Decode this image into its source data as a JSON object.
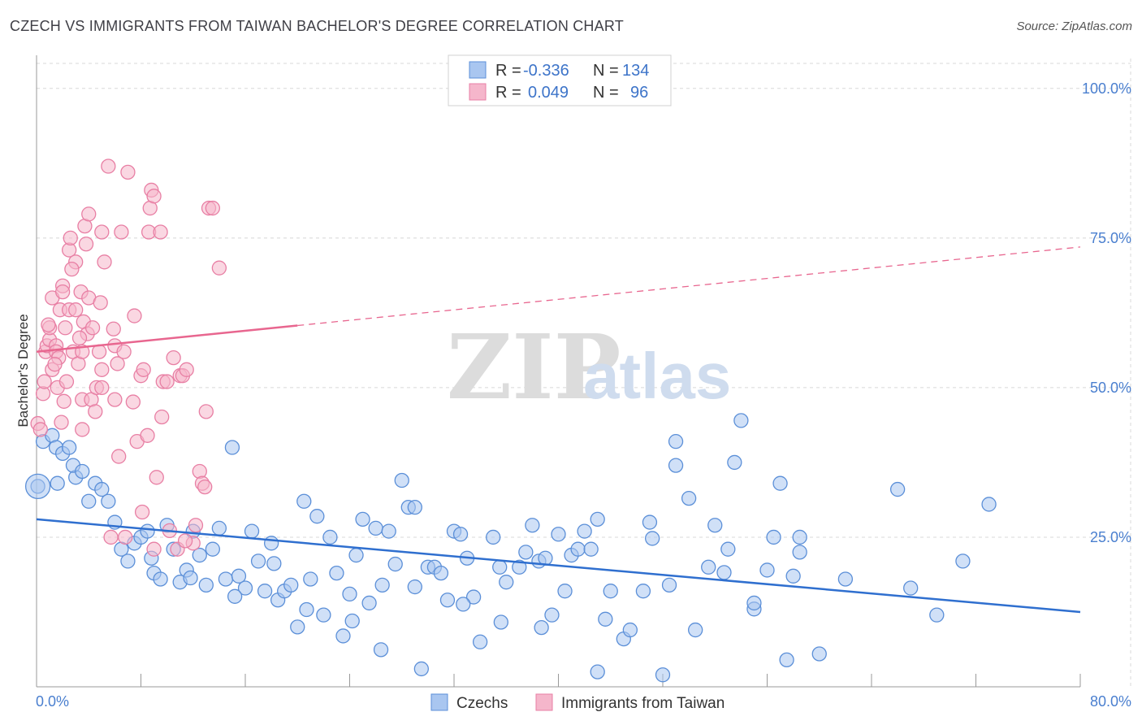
{
  "title": "CZECH VS IMMIGRANTS FROM TAIWAN BACHELOR'S DEGREE CORRELATION CHART",
  "source": "Source: ZipAtlas.com",
  "watermark": {
    "zip": "ZIP",
    "atlas": "atlas"
  },
  "colors": {
    "czech_fill": "#a9c6f0",
    "czech_stroke": "#5b8fd8",
    "czech_line": "#2f6fcf",
    "taiwan_fill": "#f5b6cb",
    "taiwan_stroke": "#e87fa4",
    "taiwan_line": "#e8668f",
    "grid": "#d8d8d8",
    "tick_label": "#4a7fcf"
  },
  "chart_data": {
    "type": "scatter",
    "ylabel": "Bachelor's Degree",
    "xlim": [
      0,
      80
    ],
    "ylim": [
      0,
      105
    ],
    "x_tick_labels": [
      {
        "value": 0,
        "label": "0.0%"
      },
      {
        "value": 80,
        "label": "80.0%"
      }
    ],
    "y_tick_labels": [
      {
        "value": 25,
        "label": "25.0%"
      },
      {
        "value": 50,
        "label": "50.0%"
      },
      {
        "value": 75,
        "label": "75.0%"
      },
      {
        "value": 100,
        "label": "100.0%"
      }
    ],
    "legend": [
      {
        "r_label": "R =",
        "r_value": "-0.336",
        "n_label": "N =",
        "n_value": "134"
      },
      {
        "r_label": "R =",
        "r_value": "0.049",
        "n_label": "N =",
        "n_value": "96"
      }
    ],
    "series": [
      {
        "name": "Czechs",
        "trend": {
          "x": [
            0,
            80
          ],
          "y": [
            28.0,
            12.5
          ],
          "dashed_from": null
        },
        "points": [
          [
            0.1,
            33.5
          ],
          [
            0.5,
            41
          ],
          [
            1.2,
            42
          ],
          [
            1.5,
            40
          ],
          [
            2,
            39
          ],
          [
            2.5,
            40
          ],
          [
            3,
            35
          ],
          [
            2.8,
            37
          ],
          [
            1.6,
            34
          ],
          [
            3.5,
            36
          ],
          [
            4,
            31
          ],
          [
            4.5,
            34
          ],
          [
            5,
            33
          ],
          [
            5.5,
            31
          ],
          [
            6,
            27.5
          ],
          [
            6.5,
            23
          ],
          [
            7,
            21
          ],
          [
            7.5,
            24
          ],
          [
            8,
            25
          ],
          [
            8.5,
            26
          ],
          [
            9,
            19
          ],
          [
            9.5,
            18
          ],
          [
            10,
            27
          ],
          [
            10.5,
            23
          ],
          [
            11,
            17.5
          ],
          [
            11.5,
            19.5
          ],
          [
            12,
            26
          ],
          [
            12.5,
            22
          ],
          [
            13,
            17
          ],
          [
            13.5,
            23
          ],
          [
            14,
            26.5
          ],
          [
            14.5,
            18
          ],
          [
            15,
            40
          ],
          [
            15.5,
            18.5
          ],
          [
            16,
            16.5
          ],
          [
            16.5,
            26
          ],
          [
            17,
            21
          ],
          [
            17.5,
            16
          ],
          [
            18,
            24
          ],
          [
            18.5,
            14.5
          ],
          [
            19,
            16
          ],
          [
            19.5,
            17
          ],
          [
            20,
            10
          ],
          [
            20.5,
            31
          ],
          [
            21,
            18
          ],
          [
            21.5,
            28.5
          ],
          [
            22,
            12
          ],
          [
            22.5,
            25
          ],
          [
            23,
            19
          ],
          [
            23.5,
            8.5
          ],
          [
            24,
            15.5
          ],
          [
            24.5,
            22
          ],
          [
            25,
            28
          ],
          [
            25.5,
            14
          ],
          [
            26,
            26.5
          ],
          [
            26.5,
            17
          ],
          [
            27,
            26
          ],
          [
            27.5,
            20.5
          ],
          [
            28,
            34.5
          ],
          [
            28.5,
            30
          ],
          [
            29,
            30
          ],
          [
            29.5,
            3
          ],
          [
            30,
            20
          ],
          [
            30.5,
            20
          ],
          [
            31,
            19
          ],
          [
            31.5,
            14.5
          ],
          [
            32,
            26
          ],
          [
            32.5,
            25.5
          ],
          [
            33,
            21.5
          ],
          [
            33.5,
            15
          ],
          [
            34,
            7.5
          ],
          [
            35,
            25
          ],
          [
            35.5,
            20
          ],
          [
            36,
            17.5
          ],
          [
            37,
            20
          ],
          [
            37.5,
            22.5
          ],
          [
            38,
            27
          ],
          [
            38.5,
            21
          ],
          [
            39,
            21.5
          ],
          [
            39.5,
            12
          ],
          [
            40,
            25.5
          ],
          [
            40.5,
            16
          ],
          [
            41,
            22
          ],
          [
            41.5,
            23
          ],
          [
            42,
            26
          ],
          [
            42.5,
            23
          ],
          [
            43,
            28
          ],
          [
            43,
            2.5
          ],
          [
            44,
            16
          ],
          [
            45,
            8
          ],
          [
            45.5,
            9.5
          ],
          [
            46.5,
            16
          ],
          [
            47,
            27.5
          ],
          [
            48,
            2
          ],
          [
            48.5,
            17
          ],
          [
            49,
            41
          ],
          [
            49,
            37
          ],
          [
            50,
            31.5
          ],
          [
            50.5,
            9.5
          ],
          [
            51.5,
            20
          ],
          [
            52,
            27
          ],
          [
            53,
            23
          ],
          [
            53.5,
            37.5
          ],
          [
            54,
            44.5
          ],
          [
            55,
            13
          ],
          [
            55,
            14
          ],
          [
            56,
            19.5
          ],
          [
            56.5,
            25
          ],
          [
            57,
            34
          ],
          [
            57.5,
            4.5
          ],
          [
            58,
            18.5
          ],
          [
            58.5,
            25
          ],
          [
            58.5,
            22.5
          ],
          [
            60,
            5.5
          ],
          [
            62,
            18
          ],
          [
            66,
            33
          ],
          [
            67,
            16.5
          ],
          [
            69,
            12
          ],
          [
            71,
            21
          ],
          [
            73,
            30.5
          ],
          [
            24.2,
            11
          ],
          [
            32.7,
            13.8
          ],
          [
            47.2,
            24.8
          ],
          [
            8.8,
            21.5
          ],
          [
            11.8,
            18.2
          ],
          [
            15.2,
            15.1
          ],
          [
            20.7,
            12.9
          ],
          [
            38.7,
            9.9
          ],
          [
            43.6,
            11.3
          ],
          [
            52.7,
            19.1
          ],
          [
            26.4,
            6.2
          ],
          [
            35.6,
            10.8
          ],
          [
            18.2,
            20.6
          ],
          [
            29.0,
            16.7
          ]
        ]
      },
      {
        "name": "Immigrants from Taiwan",
        "trend": {
          "x": [
            0,
            80
          ],
          "y": [
            56.0,
            73.5
          ],
          "dashed_from": 20
        },
        "points": [
          [
            0.1,
            44
          ],
          [
            0.3,
            43
          ],
          [
            0.5,
            49
          ],
          [
            0.6,
            51
          ],
          [
            0.7,
            56
          ],
          [
            0.8,
            57
          ],
          [
            1,
            58
          ],
          [
            1,
            60
          ],
          [
            1.2,
            53
          ],
          [
            1.2,
            65
          ],
          [
            1.5,
            57
          ],
          [
            1.5,
            56
          ],
          [
            1.6,
            50
          ],
          [
            1.7,
            55
          ],
          [
            1.8,
            63
          ],
          [
            2,
            67
          ],
          [
            2,
            66
          ],
          [
            2.2,
            60
          ],
          [
            2.3,
            51
          ],
          [
            2.5,
            63
          ],
          [
            2.5,
            73
          ],
          [
            2.6,
            75
          ],
          [
            2.8,
            56
          ],
          [
            3,
            71
          ],
          [
            3,
            63
          ],
          [
            3.2,
            54
          ],
          [
            3.4,
            66
          ],
          [
            3.5,
            56
          ],
          [
            3.5,
            43
          ],
          [
            3.5,
            48
          ],
          [
            3.6,
            61
          ],
          [
            3.7,
            77
          ],
          [
            3.8,
            74
          ],
          [
            3.9,
            59
          ],
          [
            4,
            65
          ],
          [
            4,
            79
          ],
          [
            4.2,
            48
          ],
          [
            4.3,
            60
          ],
          [
            4.5,
            46
          ],
          [
            4.6,
            50
          ],
          [
            4.8,
            56
          ],
          [
            5,
            76
          ],
          [
            5,
            53
          ],
          [
            5.2,
            71
          ],
          [
            5.5,
            87
          ],
          [
            5,
            50
          ],
          [
            5.7,
            25
          ],
          [
            6,
            57
          ],
          [
            6,
            48
          ],
          [
            6.2,
            54
          ],
          [
            6.5,
            76
          ],
          [
            6.7,
            56
          ],
          [
            6.8,
            25
          ],
          [
            7,
            86
          ],
          [
            7.5,
            62
          ],
          [
            7.7,
            41
          ],
          [
            8,
            52
          ],
          [
            8.2,
            53
          ],
          [
            8.5,
            42
          ],
          [
            8.6,
            76
          ],
          [
            8.7,
            80
          ],
          [
            8.8,
            83
          ],
          [
            9,
            82
          ],
          [
            9,
            23
          ],
          [
            9.2,
            35
          ],
          [
            9.5,
            76
          ],
          [
            9.7,
            51
          ],
          [
            10,
            51
          ],
          [
            10.5,
            55
          ],
          [
            10.8,
            23
          ],
          [
            11,
            52
          ],
          [
            11.2,
            52
          ],
          [
            11.5,
            53
          ],
          [
            12,
            24
          ],
          [
            12.2,
            27
          ],
          [
            12.5,
            36
          ],
          [
            12.7,
            34
          ],
          [
            13,
            46
          ],
          [
            13.2,
            80
          ],
          [
            13.5,
            80
          ],
          [
            14,
            70
          ],
          [
            0.9,
            60.5
          ],
          [
            1.9,
            44.2
          ],
          [
            2.7,
            69.8
          ],
          [
            3.3,
            58.3
          ],
          [
            4.9,
            64.2
          ],
          [
            5.9,
            59.8
          ],
          [
            6.3,
            38.5
          ],
          [
            7.4,
            47.6
          ],
          [
            8.1,
            29.2
          ],
          [
            9.6,
            45.1
          ],
          [
            10.2,
            26.1
          ],
          [
            11.4,
            24.4
          ],
          [
            12.9,
            33.4
          ],
          [
            2.1,
            47.7
          ],
          [
            1.4,
            53.9
          ]
        ]
      }
    ]
  }
}
